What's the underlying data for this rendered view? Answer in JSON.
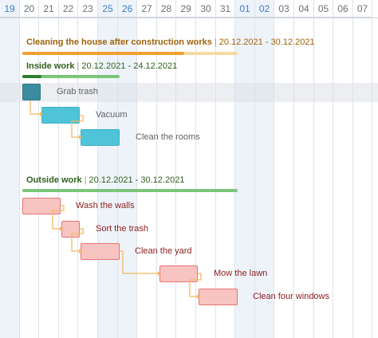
{
  "timeline": {
    "days": [
      {
        "label": "19",
        "weekend": true
      },
      {
        "label": "20",
        "weekend": false
      },
      {
        "label": "21",
        "weekend": false
      },
      {
        "label": "22",
        "weekend": false
      },
      {
        "label": "23",
        "weekend": false
      },
      {
        "label": "25",
        "weekend": true
      },
      {
        "label": "26",
        "weekend": true
      },
      {
        "label": "27",
        "weekend": false
      },
      {
        "label": "28",
        "weekend": false
      },
      {
        "label": "29",
        "weekend": false
      },
      {
        "label": "30",
        "weekend": false
      },
      {
        "label": "31",
        "weekend": false
      },
      {
        "label": "01",
        "weekend": true
      },
      {
        "label": "02",
        "weekend": true
      },
      {
        "label": "03",
        "weekend": false
      },
      {
        "label": "04",
        "weekend": false
      },
      {
        "label": "05",
        "weekend": false
      },
      {
        "label": "06",
        "weekend": false
      },
      {
        "label": "07",
        "weekend": false
      }
    ]
  },
  "project": {
    "title": "Cleaning the house after construction works",
    "sep": "|",
    "range": "20.12.2021 - 30.12.2021",
    "progress": 0.75,
    "color": "#f0a030"
  },
  "groups": [
    {
      "id": "inside",
      "title": "Inside work",
      "sep": "|",
      "range": "20.12.2021 - 24.12.2021",
      "progress": 0.2,
      "color": "#7cc47a",
      "tasks": [
        {
          "name": "Grab trash",
          "style": "dark"
        },
        {
          "name": "Vacuum",
          "style": "blue"
        },
        {
          "name": "Clean the rooms",
          "style": "blue"
        }
      ]
    },
    {
      "id": "outside",
      "title": "Outside work",
      "sep": "|",
      "range": "20.12.2021 - 30.12.2021",
      "progress": 0,
      "color": "#7cc47a",
      "tasks": [
        {
          "name": "Wash the walls",
          "style": "red"
        },
        {
          "name": "Sort the trash",
          "style": "red"
        },
        {
          "name": "Clean the yard",
          "style": "red"
        },
        {
          "name": "Mow the lawn",
          "style": "red"
        },
        {
          "name": "Clean four windows",
          "style": "red"
        }
      ]
    }
  ],
  "colors": {
    "weekend_text": "#3b7fc4",
    "link": "#f4b860",
    "group_title": "#2f5f1d",
    "project_title": "#a0620a"
  }
}
